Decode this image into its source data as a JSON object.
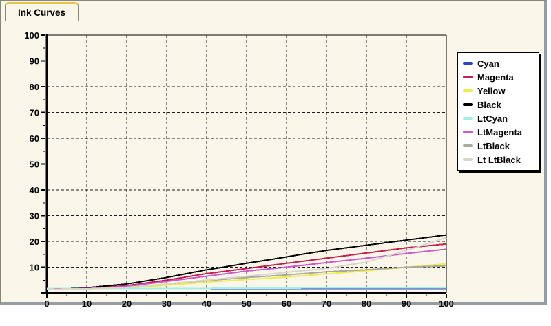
{
  "window": {
    "tab_label": "Ink Curves"
  },
  "colors": {
    "panel_bg": "#faf7ea",
    "panel_border": "#8a8674",
    "window_edge": "#959ca4",
    "tab_accent": "#e9c351",
    "grid": "#1a1a1a",
    "axis": "#000000",
    "legend_bg": "#ffffff",
    "legend_shadow": "#000000"
  },
  "chart_data": {
    "type": "line",
    "title": "Ink Curves",
    "xlabel": "",
    "ylabel": "",
    "xlim": [
      0,
      100
    ],
    "ylim": [
      0,
      100
    ],
    "grid": "dashed",
    "legend_position": "right",
    "minor_tick_step": 5,
    "x_ticks": [
      0,
      10,
      20,
      30,
      40,
      50,
      60,
      70,
      80,
      90,
      100
    ],
    "y_ticks": [
      10,
      20,
      30,
      40,
      50,
      60,
      70,
      80,
      90,
      100
    ],
    "x": [
      0,
      10,
      20,
      30,
      40,
      50,
      60,
      70,
      80,
      90,
      100
    ],
    "series": [
      {
        "name": "Cyan",
        "color": "#2a46c8",
        "values": [
          1.8,
          1.8,
          1.8,
          1.8,
          1.8,
          1.8,
          1.8,
          1.8,
          1.8,
          1.8,
          1.8
        ]
      },
      {
        "name": "Magenta",
        "color": "#c62051",
        "values": [
          1.5,
          1.8,
          2.8,
          5.0,
          7.5,
          9.5,
          11.5,
          13.5,
          15.5,
          17.5,
          19.0
        ]
      },
      {
        "name": "Yellow",
        "color": "#eded4c",
        "values": [
          1.5,
          1.6,
          2.0,
          3.0,
          4.2,
          5.2,
          6.2,
          7.4,
          8.6,
          10.0,
          11.3
        ]
      },
      {
        "name": "Black",
        "color": "#000000",
        "values": [
          1.5,
          2.0,
          3.5,
          6.0,
          9.0,
          11.5,
          14.0,
          16.5,
          18.5,
          20.5,
          22.5
        ]
      },
      {
        "name": "LtCyan",
        "color": "#a5efe3",
        "values": [
          1.8,
          1.8,
          1.8,
          1.8,
          1.8,
          1.9,
          1.9,
          2.0,
          2.0,
          2.0,
          2.0
        ]
      },
      {
        "name": "LtMagenta",
        "color": "#cb5bcb",
        "values": [
          1.5,
          1.7,
          2.5,
          4.5,
          6.5,
          8.5,
          10.0,
          11.8,
          13.5,
          15.3,
          17.0
        ]
      },
      {
        "name": "LtBlack",
        "color": "#a9a9a1",
        "values": [
          1.5,
          1.6,
          2.2,
          3.5,
          4.8,
          6.0,
          7.0,
          8.2,
          9.0,
          10.0,
          10.5
        ]
      },
      {
        "name": "Lt LtBlack",
        "color": "#d6d6ca",
        "values": [
          1.5,
          1.6,
          2.2,
          3.5,
          5.0,
          6.5,
          8.0,
          9.5,
          12.0,
          16.5,
          21.5
        ]
      }
    ]
  }
}
